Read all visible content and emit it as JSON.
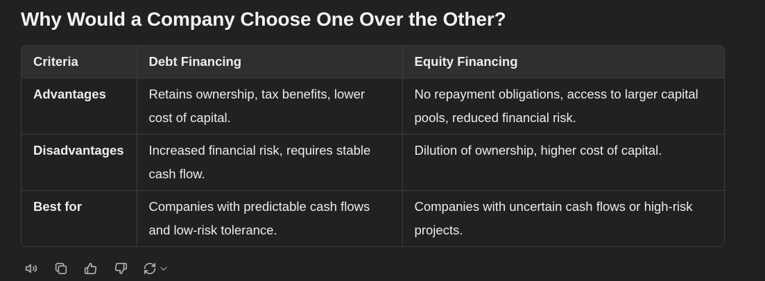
{
  "heading": "Why Would a Company Choose One Over the Other?",
  "table": {
    "headers": [
      "Criteria",
      "Debt Financing",
      "Equity Financing"
    ],
    "rows": [
      [
        "Advantages",
        "Retains ownership, tax benefits, lower cost of capital.",
        "No repayment obligations, access to larger capital pools, reduced financial risk."
      ],
      [
        "Disadvantages",
        "Increased financial risk, requires stable cash flow.",
        "Dilution of ownership, higher cost of capital."
      ],
      [
        "Best for",
        "Companies with predictable cash flows and low-risk tolerance.",
        "Companies with uncertain cash flows or high-risk projects."
      ]
    ]
  },
  "actions": {
    "icons": [
      "read-aloud-icon",
      "copy-icon",
      "thumbs-up-icon",
      "thumbs-down-icon",
      "regenerate-icon",
      "chevron-down-icon"
    ]
  },
  "colors": {
    "background": "#212121",
    "header_row": "#2f2f2f",
    "border": "#3d3d3d",
    "text": "#ececec",
    "icon": "#b4b4b4"
  }
}
